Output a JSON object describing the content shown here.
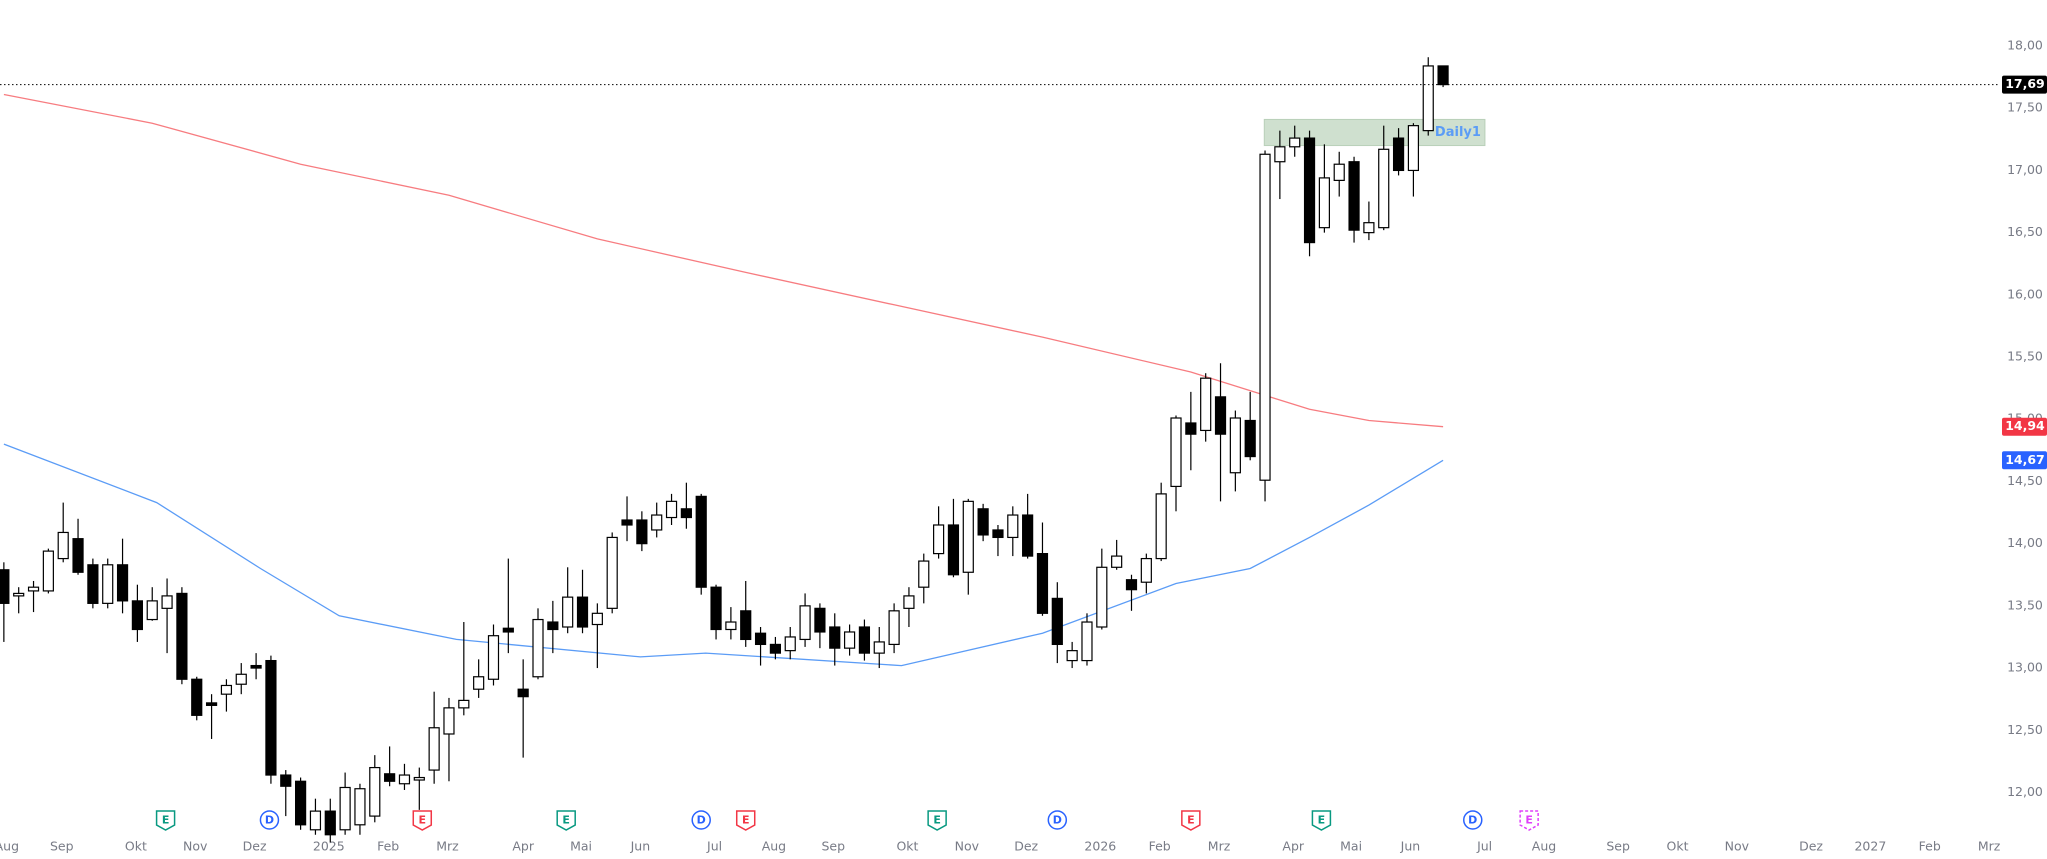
{
  "chart_data": {
    "type": "candlestick",
    "up_color": "#ffffff",
    "down_color": "#000000",
    "candles": {
      "open": [
        13.79,
        13.58,
        13.62,
        13.62,
        13.88,
        14.04,
        13.83,
        13.52,
        13.83,
        13.54,
        13.39,
        13.48,
        13.6,
        12.91,
        12.72,
        12.79,
        12.87,
        13.02,
        13.06,
        12.14,
        12.09,
        11.7,
        11.85,
        11.7,
        11.74,
        11.81,
        12.15,
        12.07,
        12.1,
        12.18,
        12.47,
        12.68,
        12.83,
        12.91,
        13.32,
        12.83,
        12.93,
        13.37,
        13.33,
        13.57,
        13.35,
        13.48,
        14.19,
        14.19,
        14.11,
        14.21,
        14.28,
        14.38,
        13.65,
        13.31,
        13.46,
        13.28,
        13.19,
        13.14,
        13.23,
        13.48,
        13.33,
        13.16,
        13.33,
        13.12,
        13.19,
        13.48,
        13.65,
        13.92,
        14.15,
        13.77,
        14.28,
        14.11,
        14.05,
        14.23,
        13.92,
        13.56,
        13.06,
        13.06,
        13.33,
        13.81,
        13.71,
        13.69,
        13.88,
        14.46,
        14.97,
        14.91,
        15.18,
        14.57,
        14.99,
        14.51,
        17.07,
        17.19,
        17.26,
        16.54,
        16.92,
        17.07,
        16.5,
        16.54,
        17.26,
        17.0,
        17.32,
        17.84
      ],
      "high": [
        13.85,
        13.65,
        13.7,
        13.96,
        14.33,
        14.2,
        13.88,
        13.88,
        14.04,
        13.67,
        13.65,
        13.72,
        13.65,
        12.93,
        12.79,
        12.91,
        13.04,
        13.12,
        13.1,
        12.18,
        12.12,
        11.95,
        11.95,
        12.16,
        12.07,
        12.3,
        12.37,
        12.23,
        12.2,
        12.81,
        12.76,
        13.37,
        13.07,
        13.35,
        13.88,
        13.07,
        13.48,
        13.54,
        13.81,
        13.79,
        13.52,
        14.09,
        14.38,
        14.26,
        14.33,
        14.4,
        14.49,
        14.4,
        13.67,
        13.49,
        13.7,
        13.33,
        13.25,
        13.33,
        13.6,
        13.52,
        13.44,
        13.35,
        13.39,
        13.33,
        13.52,
        13.65,
        13.92,
        14.3,
        14.36,
        14.36,
        14.32,
        14.15,
        14.3,
        14.4,
        14.17,
        13.69,
        13.21,
        13.44,
        13.96,
        14.03,
        13.75,
        13.92,
        14.49,
        15.03,
        15.22,
        15.37,
        15.45,
        15.07,
        15.22,
        17.16,
        17.32,
        17.36,
        17.32,
        17.21,
        17.15,
        17.11,
        16.75,
        17.36,
        17.34,
        17.38,
        17.91,
        17.84
      ],
      "low": [
        13.21,
        13.44,
        13.45,
        13.6,
        13.85,
        13.75,
        13.48,
        13.48,
        13.44,
        13.21,
        13.38,
        13.12,
        12.87,
        12.58,
        12.43,
        12.65,
        12.79,
        12.91,
        12.07,
        11.81,
        11.7,
        11.66,
        11.6,
        11.66,
        11.66,
        11.76,
        12.05,
        12.02,
        11.86,
        12.07,
        12.09,
        12.62,
        12.76,
        12.86,
        13.12,
        12.28,
        12.91,
        13.12,
        13.28,
        13.28,
        13.0,
        13.44,
        14.02,
        13.94,
        14.05,
        14.15,
        14.12,
        13.59,
        13.23,
        13.23,
        13.17,
        13.02,
        13.07,
        13.07,
        13.17,
        13.16,
        13.02,
        13.1,
        13.06,
        13.0,
        13.12,
        13.33,
        13.52,
        13.88,
        13.73,
        13.59,
        14.02,
        13.9,
        13.9,
        13.88,
        13.42,
        13.04,
        13.0,
        13.02,
        13.31,
        13.79,
        13.46,
        13.6,
        13.86,
        14.26,
        14.59,
        14.82,
        14.34,
        14.42,
        14.67,
        14.34,
        16.77,
        17.11,
        16.31,
        16.5,
        16.79,
        16.42,
        16.44,
        16.52,
        16.96,
        16.79,
        17.28,
        17.67
      ],
      "close": [
        13.52,
        13.6,
        13.65,
        13.94,
        14.09,
        13.77,
        13.52,
        13.83,
        13.54,
        13.31,
        13.54,
        13.58,
        12.91,
        12.62,
        12.7,
        12.86,
        12.95,
        13.0,
        12.14,
        12.05,
        11.74,
        11.85,
        11.66,
        12.04,
        12.03,
        12.2,
        12.09,
        12.14,
        12.12,
        12.52,
        12.68,
        12.74,
        12.93,
        13.26,
        13.29,
        12.77,
        13.39,
        13.31,
        13.57,
        13.33,
        13.44,
        14.05,
        14.15,
        14.0,
        14.23,
        14.34,
        14.21,
        13.65,
        13.31,
        13.37,
        13.23,
        13.19,
        13.12,
        13.25,
        13.5,
        13.29,
        13.16,
        13.29,
        13.12,
        13.21,
        13.46,
        13.58,
        13.86,
        14.15,
        13.75,
        14.34,
        14.07,
        14.05,
        14.23,
        13.9,
        13.44,
        13.19,
        13.14,
        13.37,
        13.81,
        13.9,
        13.63,
        13.88,
        14.4,
        15.01,
        14.88,
        15.33,
        14.88,
        15.01,
        14.7,
        17.13,
        17.19,
        17.26,
        16.42,
        16.94,
        17.05,
        16.52,
        16.58,
        17.17,
        17.0,
        17.36,
        17.84,
        17.69
      ]
    },
    "moving_averages": [
      {
        "color": "#f77c80",
        "x": [
          0,
          10,
          20,
          30,
          40,
          50,
          60,
          70,
          80,
          88,
          92,
          97
        ],
        "values": [
          17.61,
          17.38,
          17.05,
          16.8,
          16.45,
          16.18,
          15.92,
          15.66,
          15.38,
          15.08,
          14.99,
          14.94
        ]
      },
      {
        "color": "#5b9cf6",
        "x": [
          0,
          10.3,
          17.3,
          22.6,
          30.5,
          42.9,
          47.3,
          60.5,
          70,
          79,
          84,
          88,
          92,
          97
        ],
        "values": [
          14.8,
          14.33,
          13.8,
          13.42,
          13.23,
          13.09,
          13.12,
          13.02,
          13.28,
          13.68,
          13.8,
          14.05,
          14.31,
          14.67
        ]
      }
    ],
    "price_labels": [
      {
        "value": 17.69,
        "label": "17,69",
        "color": "#000000"
      },
      {
        "value": 14.94,
        "label": "14,94",
        "color": "#f23645"
      },
      {
        "value": 14.67,
        "label": "14,67",
        "color": "#2962ff"
      }
    ],
    "zone": {
      "label": "Daily1",
      "x": [
        84.95,
        99.82
      ],
      "low": 17.2,
      "high": 17.41
    },
    "events": [
      {
        "label": "E",
        "x": 10.9,
        "color": "#089981"
      },
      {
        "label": "D",
        "x": 17.9,
        "color": "#2962ff"
      },
      {
        "label": "E",
        "x": 28.2,
        "color": "#f23645"
      },
      {
        "label": "E",
        "x": 37.9,
        "color": "#089981"
      },
      {
        "label": "D",
        "x": 47.0,
        "color": "#2962ff"
      },
      {
        "label": "E",
        "x": 50.0,
        "color": "#f23645"
      },
      {
        "label": "E",
        "x": 62.9,
        "color": "#089981"
      },
      {
        "label": "D",
        "x": 71.0,
        "color": "#2962ff"
      },
      {
        "label": "E",
        "x": 80.0,
        "color": "#f23645"
      },
      {
        "label": "E",
        "x": 88.8,
        "color": "#089981"
      },
      {
        "label": "D",
        "x": 99.0,
        "color": "#2962ff"
      },
      {
        "label": "E",
        "x": 102.8,
        "color": "#e040fb"
      }
    ],
    "xlim": [
      -0.26,
      134.4
    ],
    "ylim": [
      11.65,
      18.37
    ],
    "xticks": [
      {
        "value": 0.2,
        "label": "Aug"
      },
      {
        "value": 3.9,
        "label": "Sep"
      },
      {
        "value": 8.9,
        "label": "Okt"
      },
      {
        "value": 12.9,
        "label": "Nov"
      },
      {
        "value": 16.9,
        "label": "Dez"
      },
      {
        "value": 21.9,
        "label": "2025"
      },
      {
        "value": 25.9,
        "label": "Feb"
      },
      {
        "value": 29.9,
        "label": "Mrz"
      },
      {
        "value": 35.0,
        "label": "Apr"
      },
      {
        "value": 38.9,
        "label": "Mai"
      },
      {
        "value": 42.9,
        "label": "Jun"
      },
      {
        "value": 47.9,
        "label": "Jul"
      },
      {
        "value": 51.9,
        "label": "Aug"
      },
      {
        "value": 55.9,
        "label": "Sep"
      },
      {
        "value": 60.9,
        "label": "Okt"
      },
      {
        "value": 64.9,
        "label": "Nov"
      },
      {
        "value": 68.9,
        "label": "Dez"
      },
      {
        "value": 73.9,
        "label": "2026"
      },
      {
        "value": 77.9,
        "label": "Feb"
      },
      {
        "value": 81.9,
        "label": "Mrz"
      },
      {
        "value": 86.9,
        "label": "Apr"
      },
      {
        "value": 90.8,
        "label": "Mai"
      },
      {
        "value": 94.8,
        "label": "Jun"
      },
      {
        "value": 99.8,
        "label": "Jul"
      },
      {
        "value": 103.8,
        "label": "Aug"
      },
      {
        "value": 108.8,
        "label": "Sep"
      },
      {
        "value": 112.8,
        "label": "Okt"
      },
      {
        "value": 116.8,
        "label": "Nov"
      },
      {
        "value": 121.8,
        "label": "Dez"
      },
      {
        "value": 125.8,
        "label": "2027"
      },
      {
        "value": 129.8,
        "label": "Feb"
      },
      {
        "value": 133.8,
        "label": "Mrz"
      }
    ],
    "yticks": [
      {
        "value": 12,
        "label": "12,00"
      },
      {
        "value": 12.5,
        "label": "12,50"
      },
      {
        "value": 13,
        "label": "13,00"
      },
      {
        "value": 13.5,
        "label": "13,50"
      },
      {
        "value": 14,
        "label": "14,00"
      },
      {
        "value": 14.5,
        "label": "14,50"
      },
      {
        "value": 15,
        "label": "15,00"
      },
      {
        "value": 15.5,
        "label": "15,50"
      },
      {
        "value": 16,
        "label": "16,00"
      },
      {
        "value": 16.5,
        "label": "16,50"
      },
      {
        "value": 17,
        "label": "17,00"
      },
      {
        "value": 17.5,
        "label": "17,50"
      },
      {
        "value": 18,
        "label": "18,00"
      }
    ]
  }
}
